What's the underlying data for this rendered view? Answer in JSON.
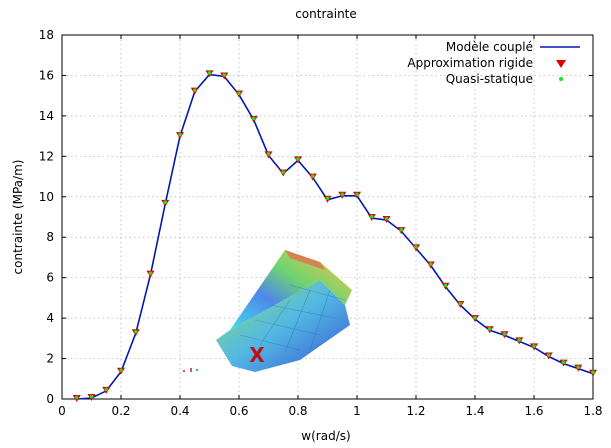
{
  "chart_data": {
    "type": "line",
    "title": "contrainte",
    "xlabel": "w(rad/s)",
    "ylabel": "contrainte (MPa/m)",
    "xlim": [
      0,
      1.8
    ],
    "ylim": [
      0,
      18
    ],
    "xticks": [
      "0",
      "0.2",
      "0.4",
      "0.6",
      "0.8",
      "1",
      "1.2",
      "1.4",
      "1.6",
      "1.8"
    ],
    "yticks": [
      "0",
      "2",
      "4",
      "6",
      "8",
      "10",
      "12",
      "14",
      "16",
      "18"
    ],
    "grid": true,
    "legend_position": "top-right",
    "x": [
      0.05,
      0.1,
      0.15,
      0.2,
      0.25,
      0.3,
      0.35,
      0.4,
      0.45,
      0.5,
      0.55,
      0.6,
      0.65,
      0.7,
      0.75,
      0.8,
      0.85,
      0.9,
      0.95,
      1.0,
      1.05,
      1.1,
      1.15,
      1.2,
      1.25,
      1.3,
      1.35,
      1.4,
      1.45,
      1.5,
      1.55,
      1.6,
      1.65,
      1.7,
      1.75,
      1.8
    ],
    "series": [
      {
        "name": "Modèle couplé",
        "style": "line",
        "color": "#0018b0",
        "values": [
          0.0,
          0.05,
          0.4,
          1.35,
          3.25,
          6.15,
          9.65,
          13.0,
          15.2,
          16.05,
          15.95,
          15.05,
          13.8,
          12.05,
          11.15,
          11.8,
          10.95,
          9.85,
          10.05,
          10.05,
          8.95,
          8.85,
          8.3,
          7.45,
          6.6,
          5.55,
          4.65,
          3.95,
          3.4,
          3.15,
          2.85,
          2.55,
          2.1,
          1.75,
          1.5,
          1.25
        ]
      },
      {
        "name": "Approximation rigide",
        "style": "triangle-marker",
        "color": "#e00000",
        "values": [
          0.0,
          0.05,
          0.4,
          1.35,
          3.25,
          6.15,
          9.65,
          13.0,
          15.2,
          16.05,
          15.95,
          15.05,
          13.8,
          12.05,
          11.15,
          11.8,
          10.95,
          9.85,
          10.05,
          10.05,
          8.95,
          8.85,
          8.3,
          7.45,
          6.6,
          5.55,
          4.65,
          3.95,
          3.4,
          3.15,
          2.85,
          2.55,
          2.1,
          1.75,
          1.5,
          1.25
        ]
      },
      {
        "name": "Quasi-statique",
        "style": "dot-marker",
        "color": "#20e020",
        "values": [
          0.0,
          0.05,
          0.4,
          1.35,
          3.25,
          6.15,
          9.65,
          13.0,
          15.2,
          16.05,
          15.95,
          15.05,
          13.8,
          12.05,
          11.15,
          11.8,
          10.95,
          9.85,
          10.05,
          10.05,
          8.95,
          8.85,
          8.3,
          7.45,
          6.6,
          5.55,
          4.65,
          3.95,
          3.4,
          3.15,
          2.85,
          2.55,
          2.1,
          1.75,
          1.5,
          1.25
        ]
      }
    ],
    "annotation": {
      "text": "X",
      "color": "#c01010",
      "icon": "ship-hull-stress-icon"
    }
  }
}
